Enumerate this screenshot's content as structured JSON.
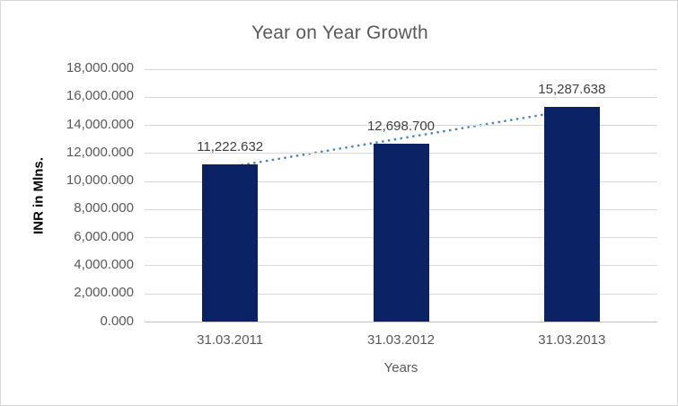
{
  "chart_data": {
    "type": "bar",
    "title": "Year on Year Growth",
    "categories": [
      "31.03.2011",
      "31.03.2012",
      "31.03.2013"
    ],
    "values": [
      11222.632,
      12698.7,
      15287.638
    ],
    "data_labels": [
      "11,222.632",
      "12,698.700",
      "15,287.638"
    ],
    "xlabel": "Years",
    "ylabel": "INR in Mlns.",
    "ylim": [
      0,
      18000
    ],
    "ytick_values": [
      0,
      2000,
      4000,
      6000,
      8000,
      10000,
      12000,
      14000,
      16000,
      18000
    ],
    "ytick_labels": [
      "0.000",
      "2,000.000",
      "4,000.000",
      "6,000.000",
      "8,000.000",
      "10,000.000",
      "12,000.000",
      "14,000.000",
      "16,000.000",
      "18,000.000"
    ],
    "grid": true,
    "legend": "none",
    "trendline": {
      "type": "linear",
      "style": "dotted"
    },
    "colors": {
      "bar": "#0B2365",
      "trendline": "#4A85C8",
      "gridline": "#D9D9D9",
      "axis_line": "#BFBFBF",
      "title_text": "#595959",
      "tick_text": "#595959",
      "data_label_text": "#404040",
      "y_axis_title_text": "#000000",
      "frame_border": "#D7D7D7"
    }
  }
}
